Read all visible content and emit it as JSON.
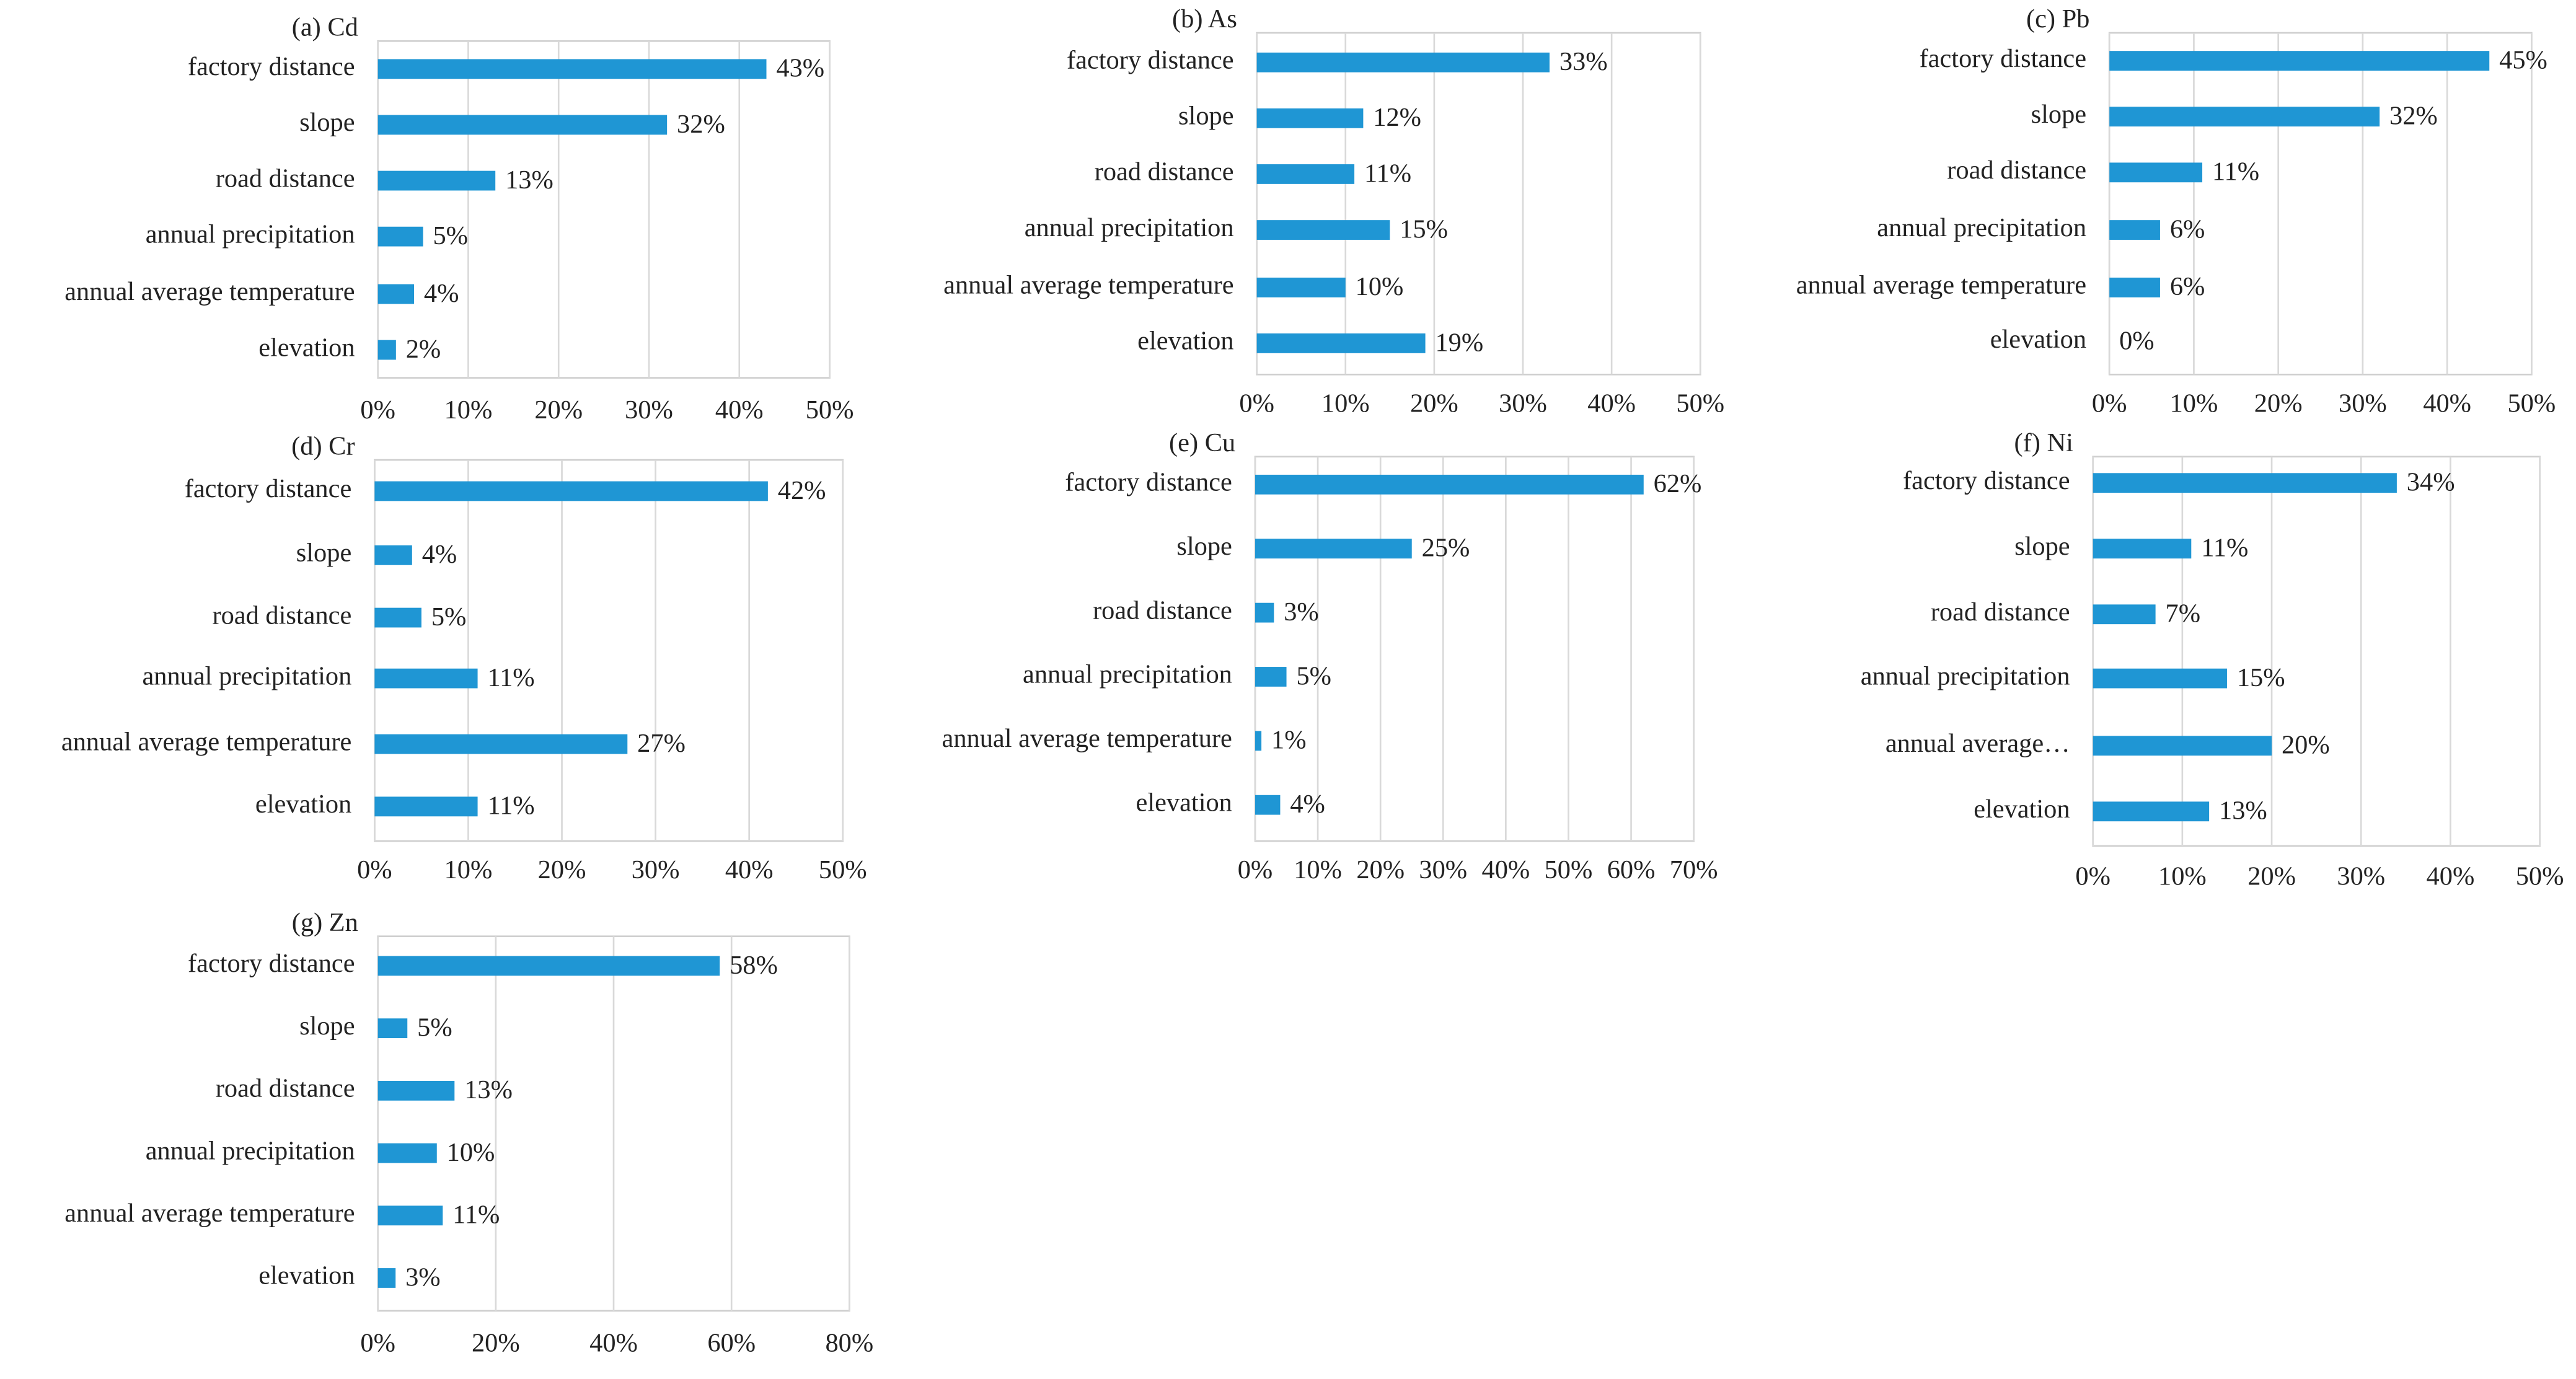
{
  "chart_data": [
    {
      "type": "bar",
      "horizontal": true,
      "title": "(a) Cd",
      "categories": [
        "factory distance",
        "slope",
        "road distance",
        "annual precipitation",
        "annual average temperature",
        "elevation"
      ],
      "values": [
        43,
        32,
        13,
        5,
        4,
        2
      ],
      "value_labels": [
        "43%",
        "32%",
        "13%",
        "5%",
        "4%",
        "2%"
      ],
      "color": "#1f96d4",
      "xlim": [
        0,
        50
      ],
      "xticks": [
        {
          "value": 0,
          "label": "0%"
        },
        {
          "value": 10,
          "label": "10%"
        },
        {
          "value": 20,
          "label": "20%"
        },
        {
          "value": 30,
          "label": "30%"
        },
        {
          "value": 40,
          "label": "40%"
        },
        {
          "value": 50,
          "label": "50%"
        }
      ],
      "grid": true
    },
    {
      "type": "bar",
      "horizontal": true,
      "title": "(b) As",
      "categories": [
        "factory distance",
        "slope",
        "road distance",
        "annual precipitation",
        "annual average temperature",
        "elevation"
      ],
      "values": [
        33,
        12,
        11,
        15,
        10,
        19
      ],
      "value_labels": [
        "33%",
        "12%",
        "11%",
        "15%",
        "10%",
        "19%"
      ],
      "color": "#1f96d4",
      "xlim": [
        0,
        50
      ],
      "xticks": [
        {
          "value": 0,
          "label": "0%"
        },
        {
          "value": 10,
          "label": "10%"
        },
        {
          "value": 20,
          "label": "20%"
        },
        {
          "value": 30,
          "label": "30%"
        },
        {
          "value": 40,
          "label": "40%"
        },
        {
          "value": 50,
          "label": "50%"
        }
      ],
      "grid": true
    },
    {
      "type": "bar",
      "horizontal": true,
      "title": "(c) Pb",
      "categories": [
        "factory distance",
        "slope",
        "road distance",
        "annual precipitation",
        "annual average temperature",
        "elevation"
      ],
      "values": [
        45,
        32,
        11,
        6,
        6,
        0
      ],
      "value_labels": [
        "45%",
        "32%",
        "11%",
        "6%",
        "6%",
        "0%"
      ],
      "color": "#1f96d4",
      "xlim": [
        0,
        50
      ],
      "xticks": [
        {
          "value": 0,
          "label": "0%"
        },
        {
          "value": 10,
          "label": "10%"
        },
        {
          "value": 20,
          "label": "20%"
        },
        {
          "value": 30,
          "label": "30%"
        },
        {
          "value": 40,
          "label": "40%"
        },
        {
          "value": 50,
          "label": "50%"
        }
      ],
      "grid": true
    },
    {
      "type": "bar",
      "horizontal": true,
      "title": "(d) Cr",
      "categories": [
        "factory distance",
        "slope",
        "road distance",
        "annual precipitation",
        "annual average temperature",
        "elevation"
      ],
      "values": [
        42,
        4,
        5,
        11,
        27,
        11
      ],
      "value_labels": [
        "42%",
        "4%",
        "5%",
        "11%",
        "27%",
        "11%"
      ],
      "color": "#1f96d4",
      "xlim": [
        0,
        50
      ],
      "xticks": [
        {
          "value": 0,
          "label": "0%"
        },
        {
          "value": 10,
          "label": "10%"
        },
        {
          "value": 20,
          "label": "20%"
        },
        {
          "value": 30,
          "label": "30%"
        },
        {
          "value": 40,
          "label": "40%"
        },
        {
          "value": 50,
          "label": "50%"
        }
      ],
      "grid": true
    },
    {
      "type": "bar",
      "horizontal": true,
      "title": "(e) Cu",
      "categories": [
        "factory distance",
        "slope",
        "road distance",
        "annual precipitation",
        "annual average temperature",
        "elevation"
      ],
      "values": [
        62,
        25,
        3,
        5,
        1,
        4
      ],
      "value_labels": [
        "62%",
        "25%",
        "3%",
        "5%",
        "1%",
        "4%"
      ],
      "color": "#1f96d4",
      "xlim": [
        0,
        70
      ],
      "xticks": [
        {
          "value": 0,
          "label": "0%"
        },
        {
          "value": 10,
          "label": "10%"
        },
        {
          "value": 20,
          "label": "20%"
        },
        {
          "value": 30,
          "label": "30%"
        },
        {
          "value": 40,
          "label": "40%"
        },
        {
          "value": 50,
          "label": "50%"
        },
        {
          "value": 60,
          "label": "60%"
        },
        {
          "value": 70,
          "label": "70%"
        }
      ],
      "grid": true
    },
    {
      "type": "bar",
      "horizontal": true,
      "title": "(f) Ni",
      "categories": [
        "factory distance",
        "slope",
        "road distance",
        "annual precipitation",
        "annual average…",
        "elevation"
      ],
      "values": [
        34,
        11,
        7,
        15,
        20,
        13
      ],
      "value_labels": [
        "34%",
        "11%",
        "7%",
        "15%",
        "20%",
        "13%"
      ],
      "color": "#1f96d4",
      "xlim": [
        0,
        50
      ],
      "xticks": [
        {
          "value": 0,
          "label": "0%"
        },
        {
          "value": 10,
          "label": "10%"
        },
        {
          "value": 20,
          "label": "20%"
        },
        {
          "value": 30,
          "label": "30%"
        },
        {
          "value": 40,
          "label": "40%"
        },
        {
          "value": 50,
          "label": "50%"
        }
      ],
      "grid": true
    },
    {
      "type": "bar",
      "horizontal": true,
      "title": "(g) Zn",
      "categories": [
        "factory distance",
        "slope",
        "road distance",
        "annual precipitation",
        "annual average temperature",
        "elevation"
      ],
      "values": [
        58,
        5,
        13,
        10,
        11,
        3
      ],
      "value_labels": [
        "58%",
        "5%",
        "13%",
        "10%",
        "11%",
        "3%"
      ],
      "color": "#1f96d4",
      "xlim": [
        0,
        80
      ],
      "xticks": [
        {
          "value": 0,
          "label": "0%"
        },
        {
          "value": 20,
          "label": "20%"
        },
        {
          "value": 40,
          "label": "40%"
        },
        {
          "value": 60,
          "label": "60%"
        },
        {
          "value": 80,
          "label": "80%"
        }
      ],
      "grid": true
    }
  ]
}
